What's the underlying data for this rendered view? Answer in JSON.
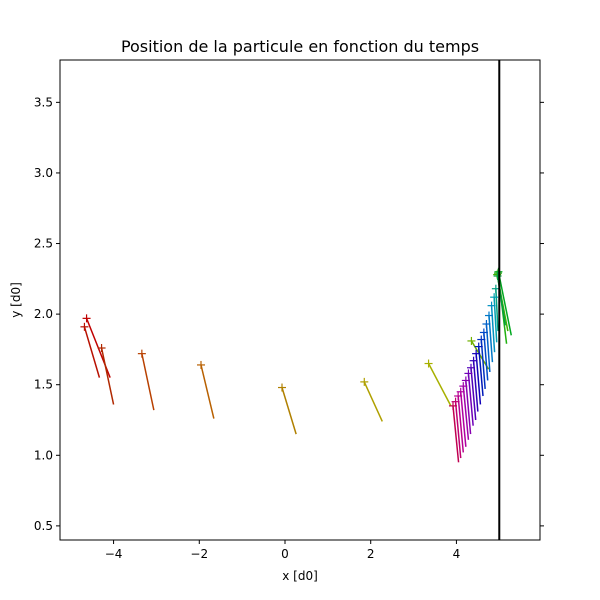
{
  "chart_data": {
    "type": "scatter",
    "title": "Position de la particule en fonction du temps",
    "xlabel": "x [d0]",
    "ylabel": "y [d0]",
    "xlim": [
      -5.25,
      5.95
    ],
    "ylim": [
      0.4,
      3.8
    ],
    "xticks": [
      -4,
      -2,
      0,
      2,
      4
    ],
    "xtick_labels": [
      "−4",
      "−2",
      "0",
      "2",
      "4"
    ],
    "yticks": [
      0.5,
      1.0,
      1.5,
      2.0,
      2.5,
      3.0,
      3.5
    ],
    "ytick_labels": [
      "0.5",
      "1.0",
      "1.5",
      "2.0",
      "2.5",
      "3.0",
      "3.5"
    ],
    "grid": false,
    "wall": {
      "x": 5.0,
      "color": "#000000"
    },
    "points": [
      {
        "x": -4.63,
        "y": 1.97,
        "dx": 0.55,
        "dy": -0.42,
        "color": "#c00000"
      },
      {
        "x": -4.68,
        "y": 1.91,
        "dx": 0.35,
        "dy": -0.36,
        "color": "#b81000"
      },
      {
        "x": -4.28,
        "y": 1.76,
        "dx": 0.28,
        "dy": -0.4,
        "color": "#b02800"
      },
      {
        "x": -3.34,
        "y": 1.72,
        "dx": 0.28,
        "dy": -0.4,
        "color": "#b84000"
      },
      {
        "x": -1.96,
        "y": 1.64,
        "dx": 0.3,
        "dy": -0.38,
        "color": "#b86000"
      },
      {
        "x": -0.07,
        "y": 1.48,
        "dx": 0.33,
        "dy": -0.33,
        "color": "#b08000"
      },
      {
        "x": 1.85,
        "y": 1.52,
        "dx": 0.42,
        "dy": -0.28,
        "color": "#b0a000"
      },
      {
        "x": 3.35,
        "y": 1.65,
        "dx": 0.52,
        "dy": -0.3,
        "color": "#a8b000"
      },
      {
        "x": 4.35,
        "y": 1.81,
        "dx": 0.4,
        "dy": -0.2,
        "color": "#70b000"
      },
      {
        "x": 4.95,
        "y": 2.28,
        "dx": 0.25,
        "dy": -0.4,
        "color": "#40b000"
      },
      {
        "x": 4.97,
        "y": 2.29,
        "dx": 0.2,
        "dy": -0.5,
        "color": "#20b010"
      },
      {
        "x": 4.98,
        "y": 2.3,
        "dx": 0.3,
        "dy": -0.45,
        "color": "#00a820"
      },
      {
        "x": 4.96,
        "y": 2.27,
        "dx": 0.18,
        "dy": -0.35,
        "color": "#00a040"
      },
      {
        "x": 4.92,
        "y": 2.18,
        "dx": 0.05,
        "dy": -0.3,
        "color": "#00a080"
      },
      {
        "x": 4.88,
        "y": 2.12,
        "dx": 0.06,
        "dy": -0.32,
        "color": "#00a0b0"
      },
      {
        "x": 4.82,
        "y": 2.06,
        "dx": 0.07,
        "dy": -0.33,
        "color": "#0090c0"
      },
      {
        "x": 4.76,
        "y": 1.99,
        "dx": 0.08,
        "dy": -0.33,
        "color": "#0078c8"
      },
      {
        "x": 4.7,
        "y": 1.93,
        "dx": 0.08,
        "dy": -0.34,
        "color": "#0060c8"
      },
      {
        "x": 4.64,
        "y": 1.87,
        "dx": 0.09,
        "dy": -0.34,
        "color": "#0048c8"
      },
      {
        "x": 4.58,
        "y": 1.82,
        "dx": 0.09,
        "dy": -0.35,
        "color": "#0030c0"
      },
      {
        "x": 4.52,
        "y": 1.77,
        "dx": 0.1,
        "dy": -0.35,
        "color": "#0018b8"
      },
      {
        "x": 4.46,
        "y": 1.72,
        "dx": 0.1,
        "dy": -0.36,
        "color": "#1000b8"
      },
      {
        "x": 4.4,
        "y": 1.67,
        "dx": 0.1,
        "dy": -0.36,
        "color": "#3000b8"
      },
      {
        "x": 4.34,
        "y": 1.62,
        "dx": 0.11,
        "dy": -0.37,
        "color": "#5000b8"
      },
      {
        "x": 4.28,
        "y": 1.58,
        "dx": 0.11,
        "dy": -0.37,
        "color": "#7000b8"
      },
      {
        "x": 4.22,
        "y": 1.53,
        "dx": 0.11,
        "dy": -0.38,
        "color": "#8800b0"
      },
      {
        "x": 4.16,
        "y": 1.49,
        "dx": 0.12,
        "dy": -0.38,
        "color": "#a000a8"
      },
      {
        "x": 4.1,
        "y": 1.45,
        "dx": 0.12,
        "dy": -0.39,
        "color": "#b000a0"
      },
      {
        "x": 4.04,
        "y": 1.42,
        "dx": 0.12,
        "dy": -0.4,
        "color": "#b80090"
      },
      {
        "x": 3.98,
        "y": 1.38,
        "dx": 0.12,
        "dy": -0.4,
        "color": "#c00070"
      },
      {
        "x": 3.92,
        "y": 1.35,
        "dx": 0.13,
        "dy": -0.4,
        "color": "#c00050"
      }
    ]
  }
}
